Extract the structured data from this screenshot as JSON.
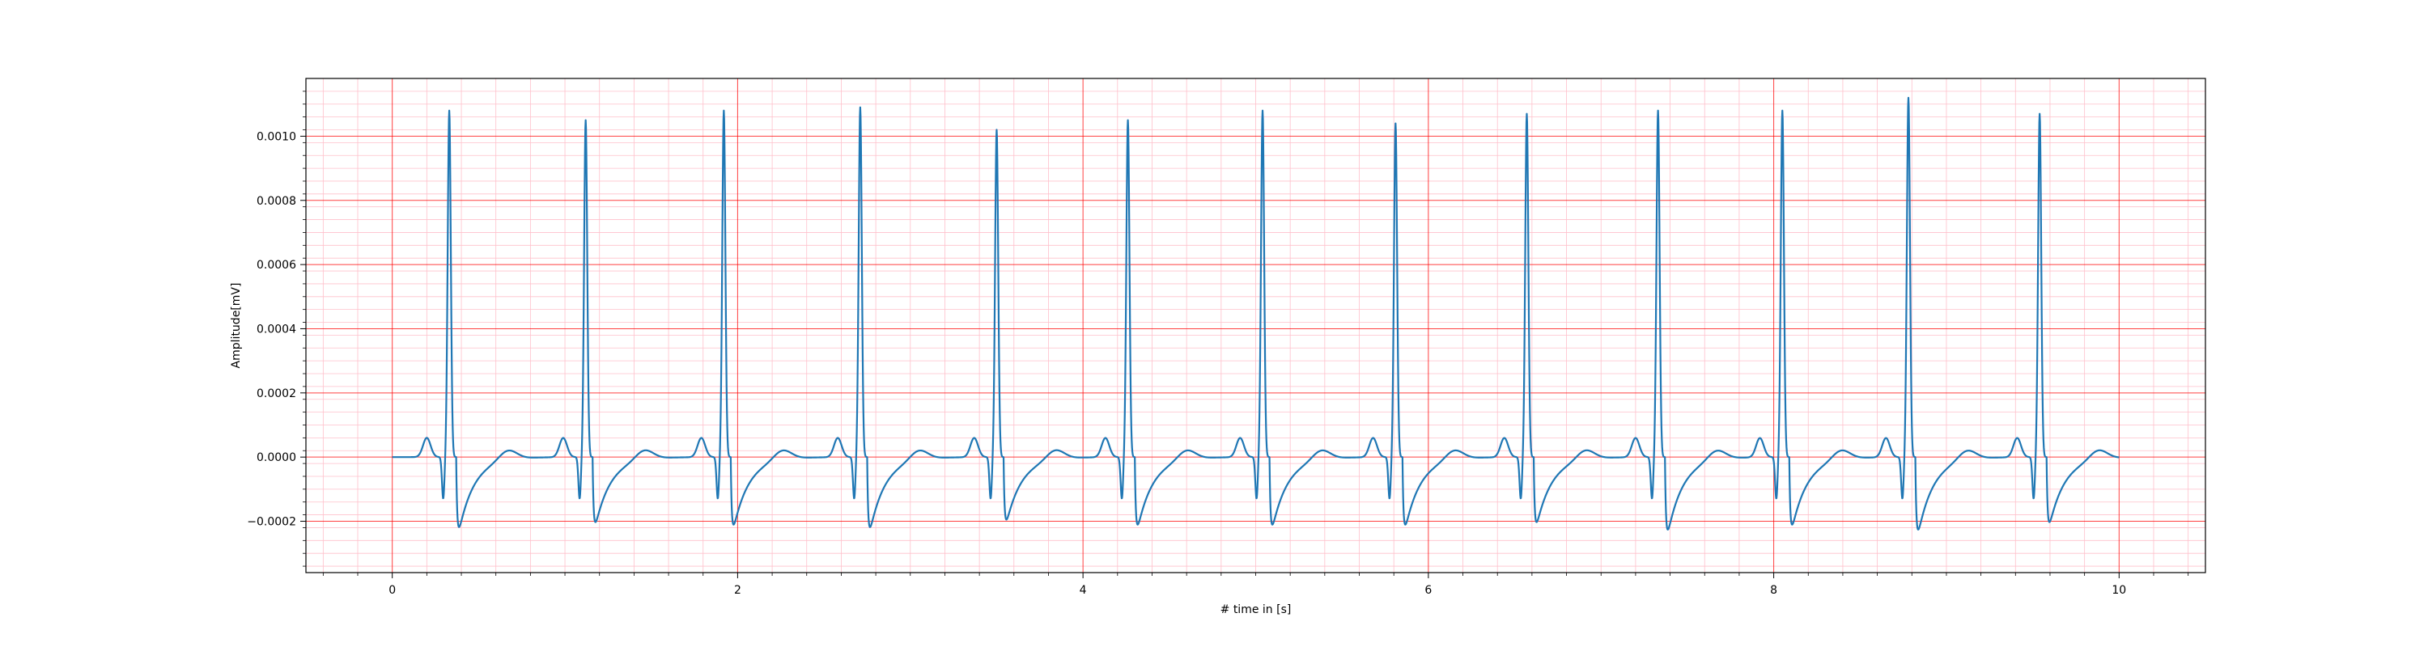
{
  "chart_data": {
    "type": "line",
    "xlabel": "# time in [s]",
    "ylabel": "Amplitude[mV]",
    "xlim": [
      -0.5,
      10.5
    ],
    "ylim": [
      -0.00036,
      0.00118
    ],
    "x_ticks": [
      0,
      2,
      4,
      6,
      8,
      10
    ],
    "x_tick_labels": [
      "0",
      "2",
      "4",
      "6",
      "8",
      "10"
    ],
    "y_ticks": [
      -0.0002,
      0.0,
      0.0002,
      0.0004,
      0.0006,
      0.0008,
      0.001
    ],
    "y_tick_labels": [
      "−0.0002",
      "0.0000",
      "0.0002",
      "0.0004",
      "0.0006",
      "0.0008",
      "0.0010"
    ],
    "grid": {
      "major": true,
      "minor": true,
      "major_color": "#ff0000",
      "minor_color": "#ffc0cb"
    },
    "line_color": "#1f77b4",
    "series": [
      {
        "r_peak_times": [
          0.33,
          1.12,
          1.92,
          2.71,
          3.5,
          4.26,
          5.04,
          5.81,
          6.57,
          7.33,
          8.05,
          8.78,
          9.54
        ],
        "r_peak_amplitudes": [
          0.00108,
          0.00105,
          0.00108,
          0.00109,
          0.00102,
          0.00105,
          0.00108,
          0.00104,
          0.00107,
          0.00108,
          0.00108,
          0.00112,
          0.00107
        ],
        "s_trough_amplitudes": [
          -0.00028,
          -0.00026,
          -0.00027,
          -0.00028,
          -0.00025,
          -0.00027,
          -0.00027,
          -0.00027,
          -0.00026,
          -0.00029,
          -0.00027,
          -0.00029,
          -0.00026
        ],
        "baseline": 0.0,
        "x_start": 0.0,
        "x_end": 10.0
      }
    ]
  }
}
